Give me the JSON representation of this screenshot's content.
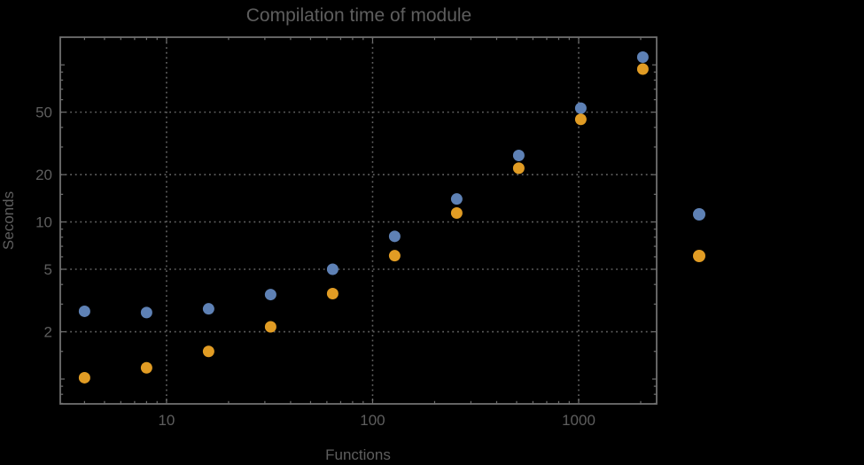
{
  "window": {
    "background": "#000000"
  },
  "chart_data": {
    "type": "scatter",
    "title": "Compilation time of module",
    "xlabel": "Functions",
    "ylabel": "Seconds",
    "x_scale": "log",
    "y_scale": "log",
    "x_range": [
      3.05,
      2390
    ],
    "y_range": [
      0.695,
      150
    ],
    "grid": "dotted gridlines at labeled major ticks",
    "legend_position": "right-outside, markers only (no visible labels)",
    "x": [
      4,
      8,
      16,
      32,
      64,
      128,
      256,
      512,
      1024,
      2048
    ],
    "series": [
      {
        "color": "#5e81b5",
        "values": [
          2.7,
          2.65,
          2.8,
          3.45,
          5.0,
          8.1,
          14.0,
          26.5,
          53.0,
          112.0
        ]
      },
      {
        "color": "#e19c24",
        "values": [
          1.02,
          1.18,
          1.5,
          2.15,
          3.5,
          6.1,
          11.4,
          22.0,
          45.0,
          94.0
        ]
      }
    ],
    "x_ticks_labeled": [
      10,
      100,
      1000
    ],
    "x_tick_labels": [
      "10",
      "100",
      "1000"
    ],
    "y_ticks_labeled": [
      2,
      5,
      10,
      20,
      50
    ],
    "y_tick_labels": [
      "2",
      "5",
      "10",
      "20",
      "50"
    ],
    "x_ticks_unlabeled": [
      4,
      5,
      6,
      7,
      8,
      9,
      20,
      30,
      40,
      50,
      60,
      70,
      80,
      90,
      200,
      300,
      400,
      500,
      600,
      700,
      800,
      900,
      2000
    ],
    "y_ticks_unlabeled": [
      0.7,
      0.8,
      0.9,
      1,
      1.5,
      3,
      4,
      6,
      7,
      8,
      9,
      15,
      30,
      40,
      60,
      70,
      80,
      90,
      100,
      150
    ],
    "legend": {
      "markers": [
        {
          "color": "#5e81b5"
        },
        {
          "color": "#e19c24"
        }
      ]
    },
    "colors": {
      "frame": "#6f6f6f",
      "grid": "#636363",
      "text": "#5e5e5e",
      "background": "#000000",
      "series1": "#5e81b5",
      "series2": "#e19c24"
    }
  }
}
